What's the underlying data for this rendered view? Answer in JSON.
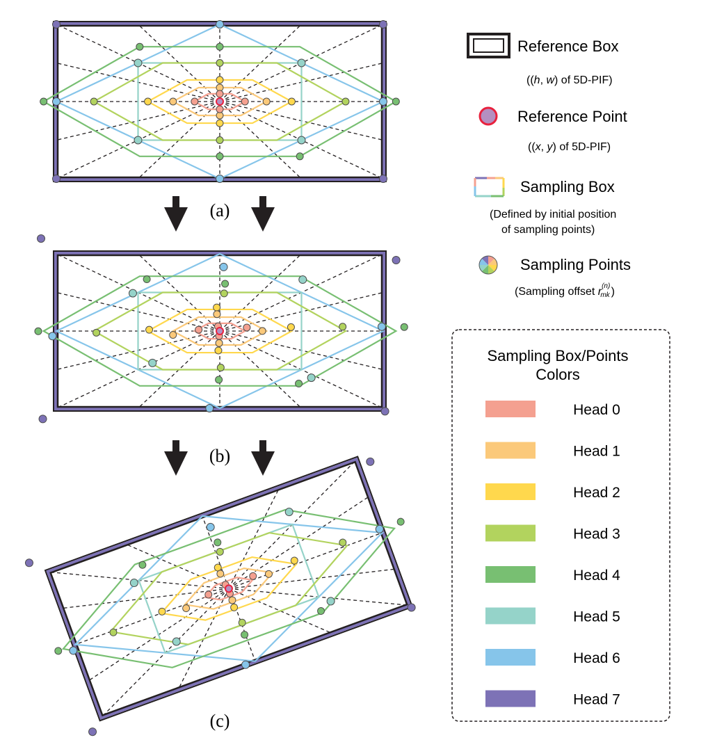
{
  "captions": {
    "a": "(a)",
    "b": "(b)",
    "c": "(c)"
  },
  "legend": {
    "reference_box": {
      "title": "Reference Box",
      "pre": "((",
      "h": "h",
      "sep": ", ",
      "w": "w",
      "post": ") of 5D-PIF)"
    },
    "reference_point": {
      "title": "Reference Point",
      "pre": "((",
      "x": "x",
      "sep": ", ",
      "y": "y",
      "post": ") of 5D-PIF)"
    },
    "sampling_box": {
      "title": "Sampling Box",
      "line1": "(Defined by initial position",
      "line2": "of sampling points)"
    },
    "sampling_points": {
      "title": "Sampling Points",
      "sub_pre": "(Sampling offset ",
      "sub_r": "r",
      "sub_sup": "(n)",
      "sub_sub": "mk",
      "sub_post": ")"
    }
  },
  "colors_box": {
    "title_line1": "Sampling Box/Points",
    "title_line2": "Colors",
    "heads": [
      {
        "label": "Head 0",
        "color": "#f4a090"
      },
      {
        "label": "Head 1",
        "color": "#fbc97a"
      },
      {
        "label": "Head 2",
        "color": "#ffd84d"
      },
      {
        "label": "Head 3",
        "color": "#b2d35e"
      },
      {
        "label": "Head 4",
        "color": "#78bf72"
      },
      {
        "label": "Head 5",
        "color": "#95d3c9"
      },
      {
        "label": "Head 6",
        "color": "#86c5ea"
      },
      {
        "label": "Head 7",
        "color": "#7d72b6"
      }
    ]
  },
  "reference_point_color": "#e8213d",
  "reference_point_fill": "#b48fc0"
}
